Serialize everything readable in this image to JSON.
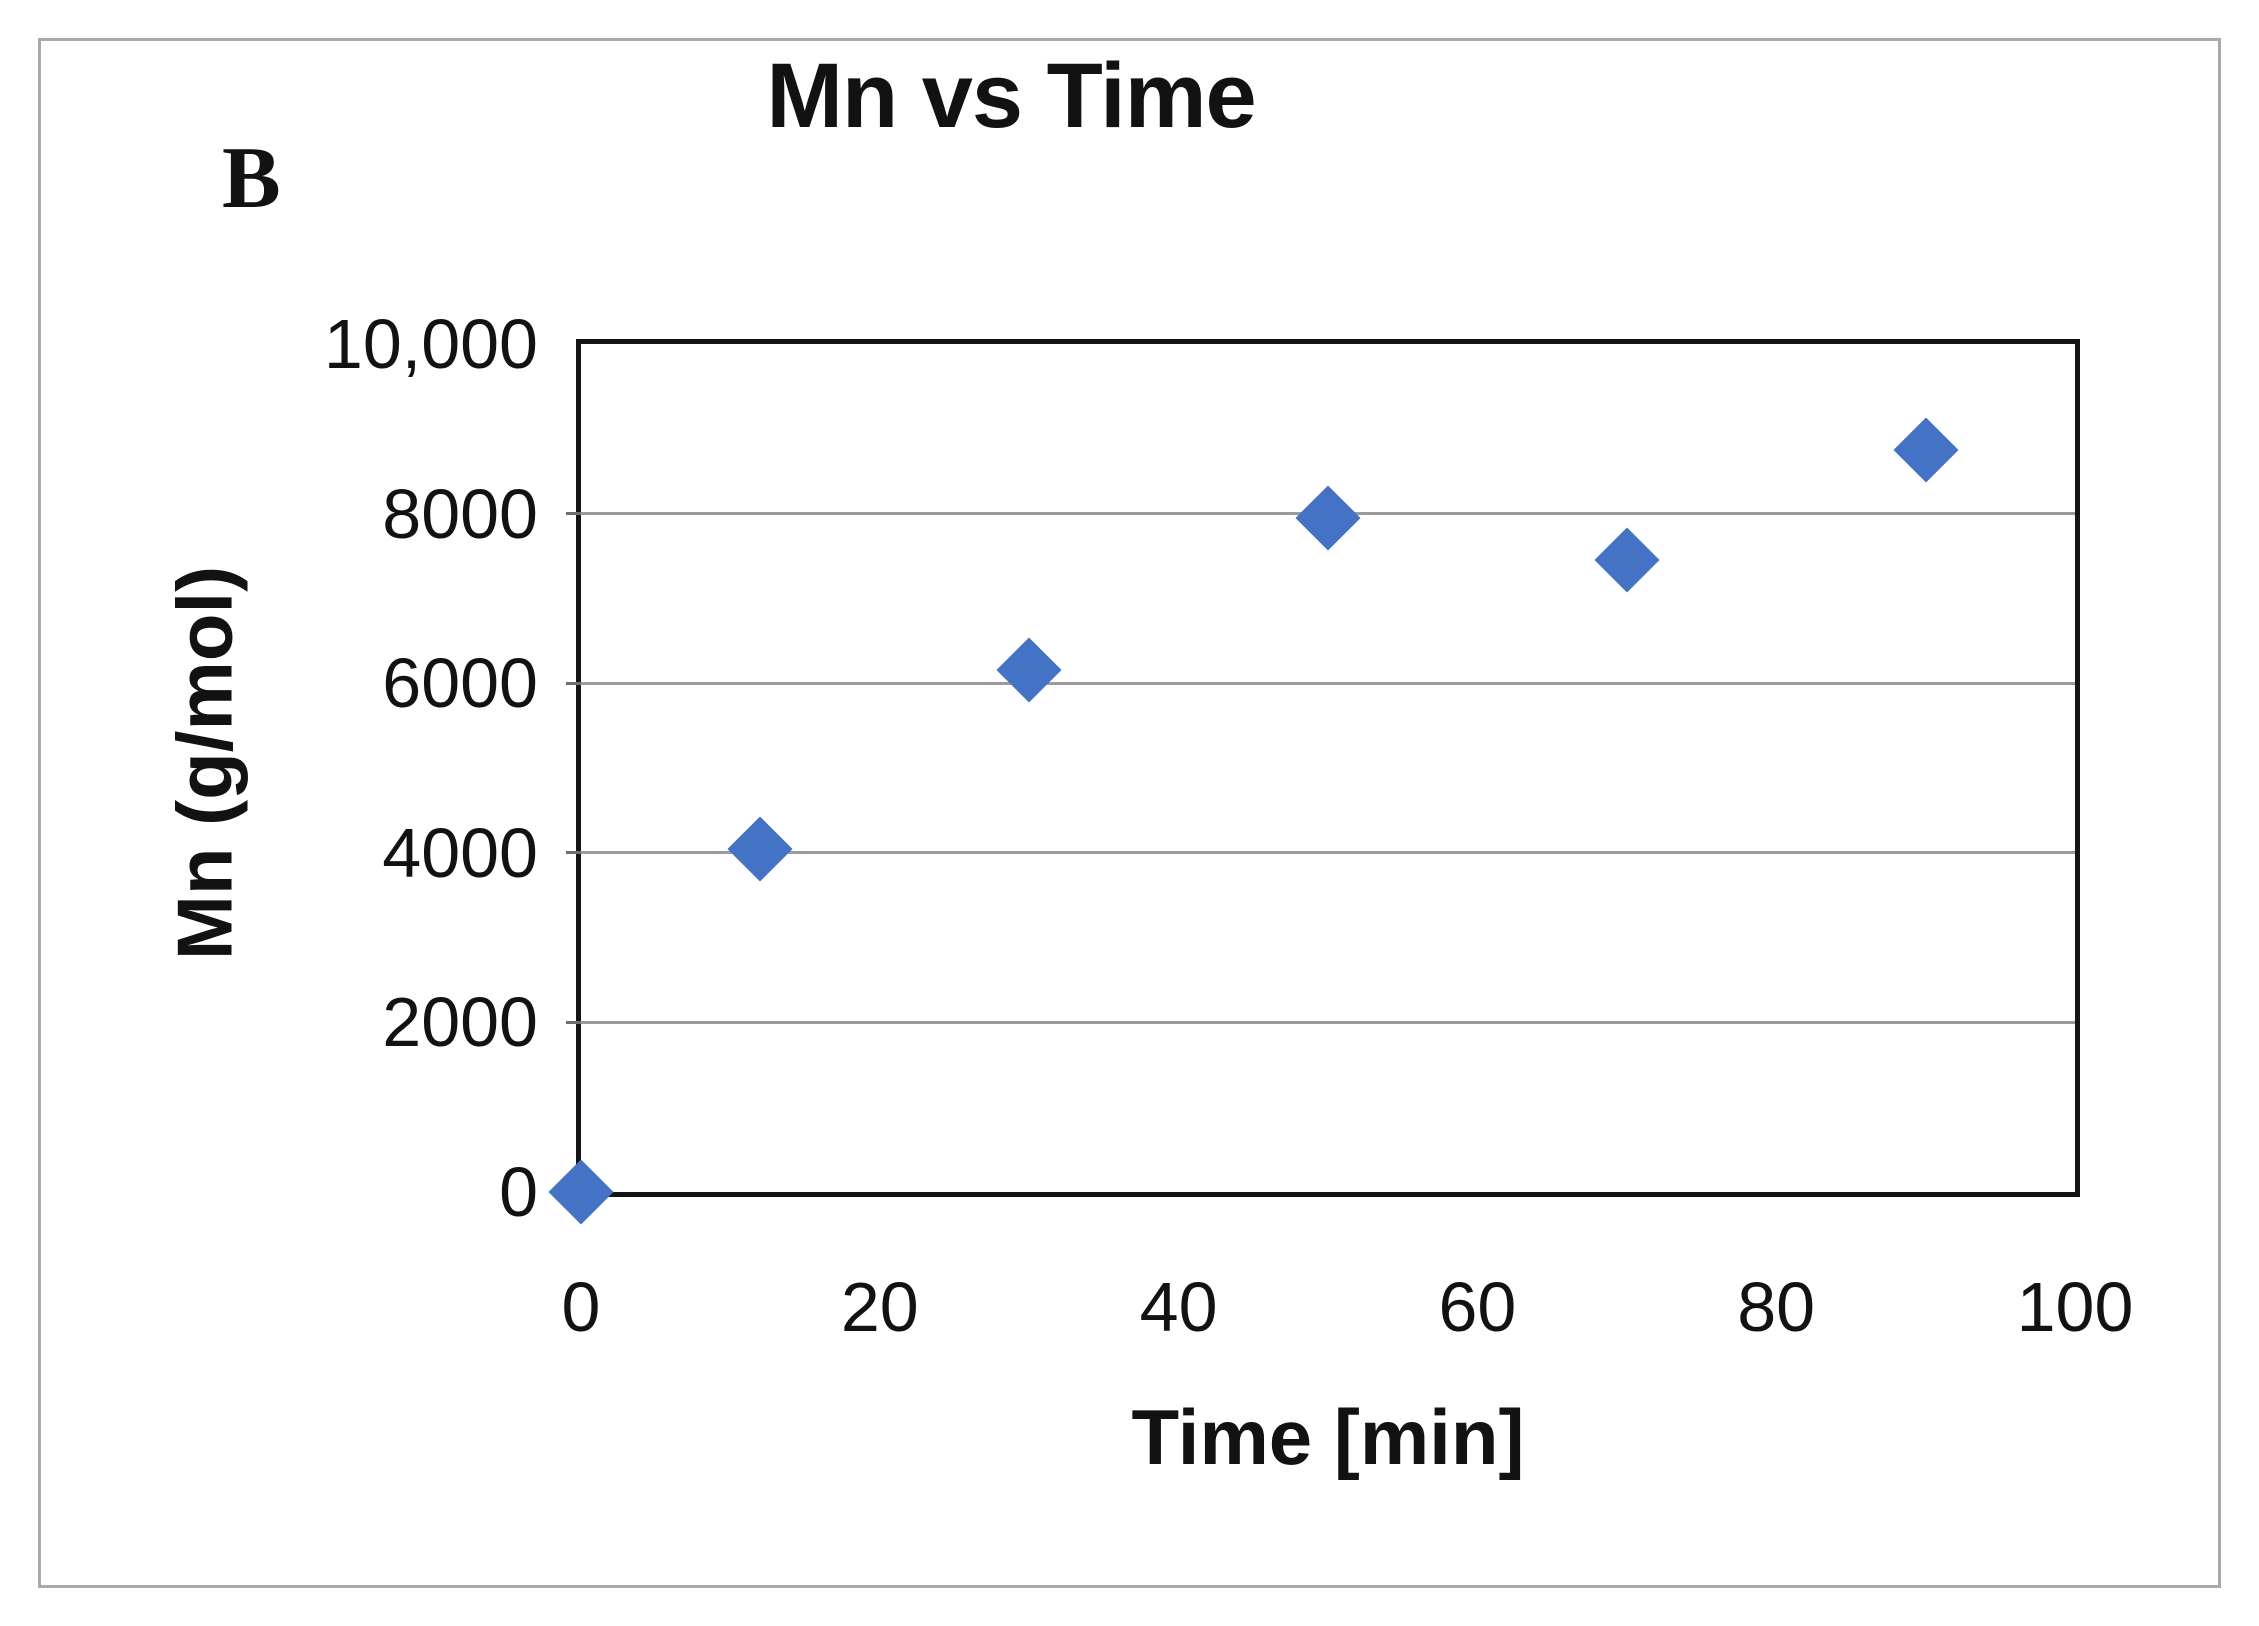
{
  "figure": {
    "panel_label": "B",
    "background": "#ffffff",
    "border_color": "#a9a9a9"
  },
  "chart_data": {
    "type": "scatter",
    "title": "Mn vs Time",
    "xlabel": "Time [min]",
    "ylabel": "Mn (g/mol)",
    "xlim": [
      0,
      100
    ],
    "ylim": [
      0,
      10000
    ],
    "x_ticks": [
      0,
      20,
      40,
      60,
      80,
      100
    ],
    "x_tick_labels": [
      "0",
      "20",
      "40",
      "60",
      "80",
      "100"
    ],
    "y_ticks": [
      0,
      2000,
      4000,
      6000,
      8000,
      10000
    ],
    "y_tick_labels": [
      "0",
      "2000",
      "4000",
      "6000",
      "8000",
      "10,000"
    ],
    "grid": "horizontal-only",
    "legend": "none",
    "marker": "diamond",
    "marker_color": "#4472C4",
    "series": [
      {
        "name": "Mn",
        "points": [
          {
            "x": 0,
            "y": 0
          },
          {
            "x": 12,
            "y": 4050
          },
          {
            "x": 30,
            "y": 6150
          },
          {
            "x": 50,
            "y": 7950
          },
          {
            "x": 70,
            "y": 7450
          },
          {
            "x": 90,
            "y": 8750
          }
        ]
      }
    ]
  }
}
